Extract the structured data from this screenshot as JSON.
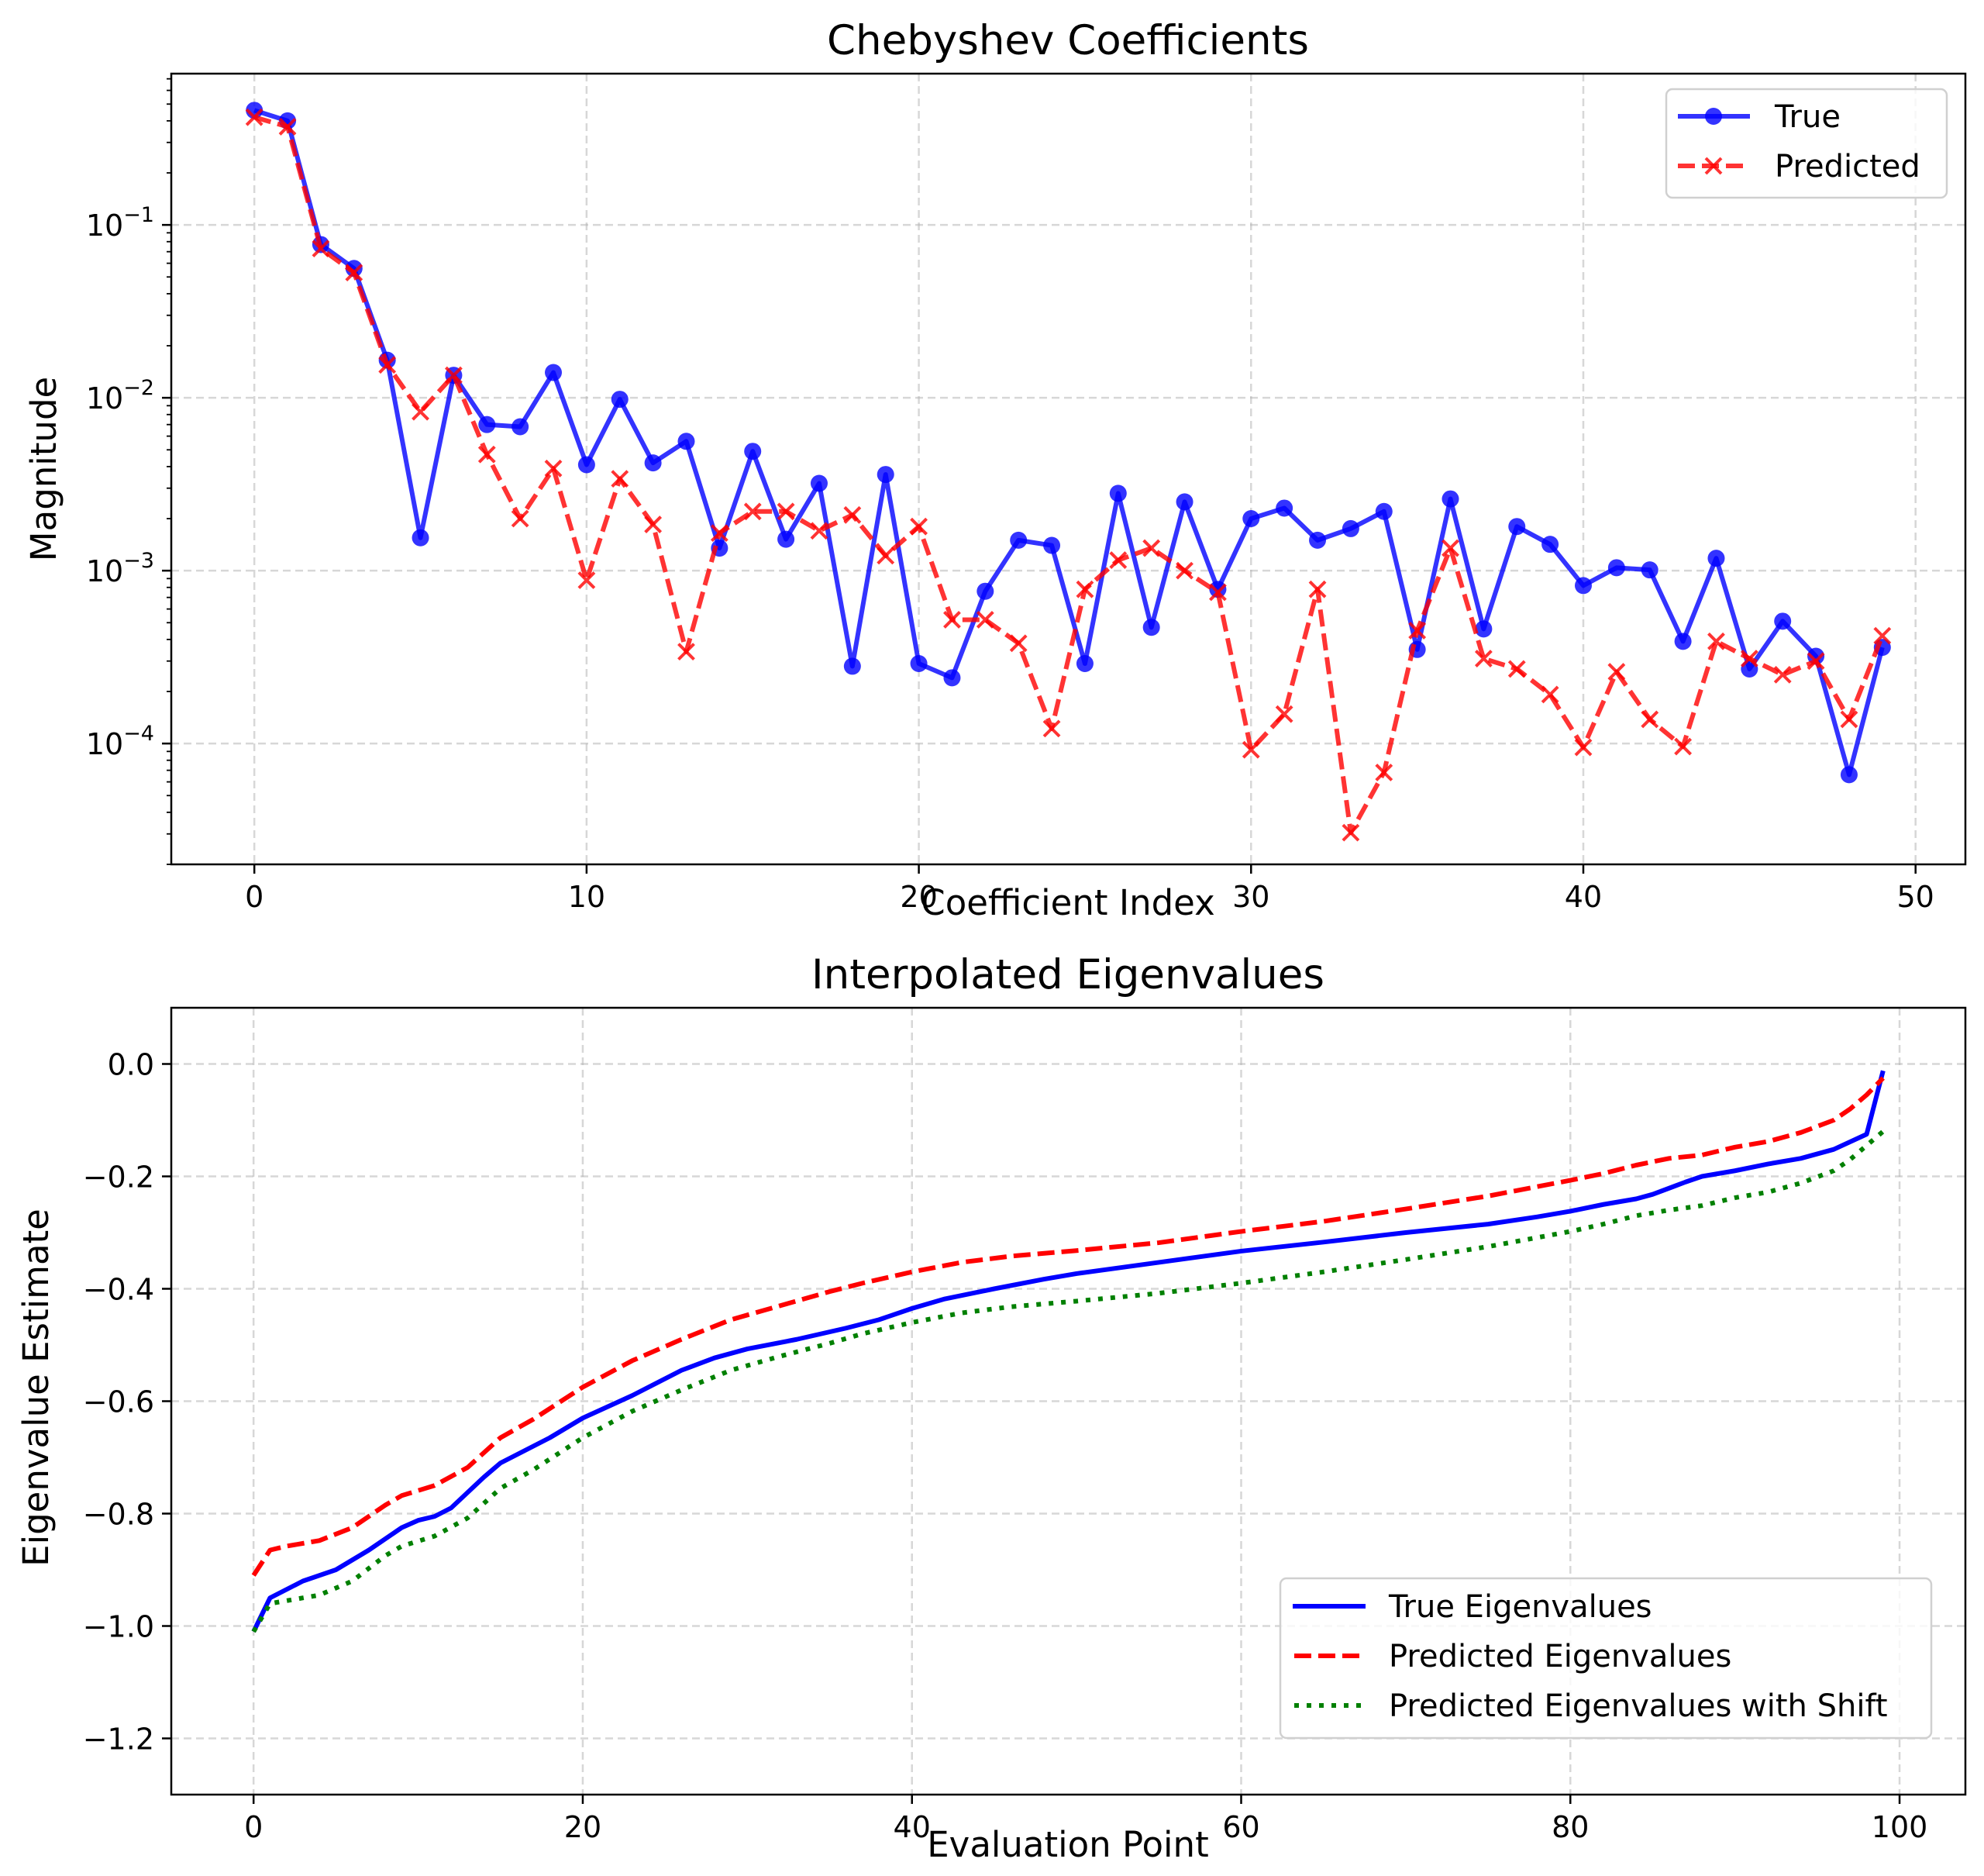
{
  "chart_data": [
    {
      "type": "line",
      "title": "Chebyshev Coefficients",
      "xlabel": "Coefficient Index",
      "ylabel": "Magnitude",
      "yscale": "log",
      "xlim": [
        -2.5,
        51.5
      ],
      "ylim": [
        2e-05,
        0.75
      ],
      "xticks": [
        0,
        10,
        20,
        30,
        40,
        50
      ],
      "xtick_labels": [
        "0",
        "10",
        "20",
        "30",
        "40",
        "50"
      ],
      "yticks": [
        0.1,
        0.01,
        0.001,
        0.0001
      ],
      "ytick_labels": [
        {
          "base": "10",
          "exp": "−1"
        },
        {
          "base": "10",
          "exp": "−2"
        },
        {
          "base": "10",
          "exp": "−3"
        },
        {
          "base": "10",
          "exp": "−4"
        }
      ],
      "grid": true,
      "legend_position": "top-right",
      "x": [
        0,
        1,
        2,
        3,
        4,
        5,
        6,
        7,
        8,
        9,
        10,
        11,
        12,
        13,
        14,
        15,
        16,
        17,
        18,
        19,
        20,
        21,
        22,
        23,
        24,
        25,
        26,
        27,
        28,
        29,
        30,
        31,
        32,
        33,
        34,
        35,
        36,
        37,
        38,
        39,
        40,
        41,
        42,
        43,
        44,
        45,
        46,
        47,
        48,
        49
      ],
      "series": [
        {
          "name": "True",
          "color": "#0000ff",
          "style": "solid",
          "marker": "circle",
          "values": [
            0.46,
            0.4,
            0.077,
            0.056,
            0.0165,
            0.00155,
            0.0135,
            0.007,
            0.0068,
            0.014,
            0.0041,
            0.0098,
            0.0042,
            0.0056,
            0.00135,
            0.0049,
            0.00152,
            0.0032,
            0.00028,
            0.0036,
            0.00029,
            0.00024,
            0.00076,
            0.0015,
            0.0014,
            0.00029,
            0.0028,
            0.00047,
            0.0025,
            0.00078,
            0.002,
            0.0023,
            0.0015,
            0.00175,
            0.0022,
            0.00035,
            0.0026,
            0.00046,
            0.0018,
            0.00142,
            0.00082,
            0.00104,
            0.00101,
            0.00039,
            0.00118,
            0.00027,
            0.00051,
            0.00032,
            6.6e-05,
            0.00036
          ]
        },
        {
          "name": "Predicted",
          "color": "#ff0000",
          "style": "dashed",
          "marker": "x",
          "values": [
            0.42,
            0.37,
            0.073,
            0.053,
            0.0155,
            0.0083,
            0.0135,
            0.0047,
            0.002,
            0.0039,
            0.00088,
            0.0034,
            0.00185,
            0.00034,
            0.00165,
            0.0022,
            0.0022,
            0.0017,
            0.0021,
            0.00122,
            0.0018,
            0.00052,
            0.00052,
            0.00038,
            0.000122,
            0.00078,
            0.00115,
            0.00135,
            0.001,
            0.00075,
            9.2e-05,
            0.000148,
            0.00078,
            3.05e-05,
            6.8e-05,
            0.00045,
            0.00135,
            0.00031,
            0.00027,
            0.000192,
            9.5e-05,
            0.00026,
            0.000138,
            9.6e-05,
            0.00039,
            0.00031,
            0.00025,
            0.0003,
            0.000138,
            0.00042
          ]
        }
      ]
    },
    {
      "type": "line",
      "title": "Interpolated Eigenvalues",
      "xlabel": "Evaluation Point",
      "ylabel": "Eigenvalue Estimate",
      "xlim": [
        -5,
        104
      ],
      "ylim": [
        -1.3,
        0.1
      ],
      "xticks": [
        0,
        20,
        40,
        60,
        80,
        100
      ],
      "xtick_labels": [
        "0",
        "20",
        "40",
        "60",
        "80",
        "100"
      ],
      "yticks": [
        0.0,
        -0.2,
        -0.4,
        -0.6,
        -0.8,
        -1.0,
        -1.2
      ],
      "ytick_labels": [
        "0.0",
        "−0.2",
        "−0.4",
        "−0.6",
        "−0.8",
        "−1.0",
        "−1.2"
      ],
      "grid": true,
      "legend_position": "bottom-right",
      "series": [
        {
          "name": "True Eigenvalues",
          "color": "#0000ff",
          "style": "solid",
          "points": [
            [
              0,
              -1.01
            ],
            [
              1,
              -0.95
            ],
            [
              2,
              -0.935
            ],
            [
              3,
              -0.92
            ],
            [
              5,
              -0.9
            ],
            [
              7,
              -0.865
            ],
            [
              9,
              -0.825
            ],
            [
              10,
              -0.812
            ],
            [
              11,
              -0.805
            ],
            [
              12,
              -0.79
            ],
            [
              14,
              -0.735
            ],
            [
              15,
              -0.71
            ],
            [
              16,
              -0.695
            ],
            [
              18,
              -0.665
            ],
            [
              20,
              -0.63
            ],
            [
              23,
              -0.59
            ],
            [
              26,
              -0.545
            ],
            [
              28,
              -0.523
            ],
            [
              30,
              -0.507
            ],
            [
              33,
              -0.49
            ],
            [
              36,
              -0.47
            ],
            [
              38,
              -0.455
            ],
            [
              40,
              -0.435
            ],
            [
              42,
              -0.418
            ],
            [
              45,
              -0.4
            ],
            [
              48,
              -0.383
            ],
            [
              50,
              -0.373
            ],
            [
              55,
              -0.353
            ],
            [
              60,
              -0.333
            ],
            [
              65,
              -0.317
            ],
            [
              70,
              -0.3
            ],
            [
              75,
              -0.285
            ],
            [
              78,
              -0.272
            ],
            [
              80,
              -0.262
            ],
            [
              82,
              -0.25
            ],
            [
              84,
              -0.24
            ],
            [
              85,
              -0.232
            ],
            [
              87,
              -0.21
            ],
            [
              88,
              -0.2
            ],
            [
              90,
              -0.19
            ],
            [
              92,
              -0.178
            ],
            [
              94,
              -0.168
            ],
            [
              96,
              -0.152
            ],
            [
              98,
              -0.125
            ],
            [
              99,
              -0.012
            ]
          ]
        },
        {
          "name": "Predicted Eigenvalues",
          "color": "#ff0000",
          "style": "dashed",
          "points": [
            [
              0,
              -0.91
            ],
            [
              1,
              -0.865
            ],
            [
              2,
              -0.858
            ],
            [
              4,
              -0.848
            ],
            [
              6,
              -0.825
            ],
            [
              8,
              -0.785
            ],
            [
              9,
              -0.768
            ],
            [
              11,
              -0.75
            ],
            [
              13,
              -0.718
            ],
            [
              15,
              -0.665
            ],
            [
              17,
              -0.632
            ],
            [
              20,
              -0.575
            ],
            [
              23,
              -0.528
            ],
            [
              26,
              -0.49
            ],
            [
              29,
              -0.455
            ],
            [
              32,
              -0.43
            ],
            [
              35,
              -0.405
            ],
            [
              37,
              -0.39
            ],
            [
              40,
              -0.37
            ],
            [
              43,
              -0.353
            ],
            [
              46,
              -0.342
            ],
            [
              50,
              -0.332
            ],
            [
              55,
              -0.318
            ],
            [
              60,
              -0.298
            ],
            [
              65,
              -0.28
            ],
            [
              70,
              -0.258
            ],
            [
              75,
              -0.235
            ],
            [
              80,
              -0.207
            ],
            [
              82,
              -0.195
            ],
            [
              84,
              -0.18
            ],
            [
              86,
              -0.168
            ],
            [
              88,
              -0.162
            ],
            [
              90,
              -0.148
            ],
            [
              92,
              -0.138
            ],
            [
              94,
              -0.122
            ],
            [
              96,
              -0.1
            ],
            [
              97,
              -0.08
            ],
            [
              98,
              -0.055
            ],
            [
              99,
              -0.025
            ]
          ]
        },
        {
          "name": "Predicted Eigenvalues with Shift",
          "color": "#008000",
          "style": "dotted",
          "points": [
            [
              0,
              -1.01
            ],
            [
              1,
              -0.96
            ],
            [
              2,
              -0.955
            ],
            [
              4,
              -0.945
            ],
            [
              6,
              -0.92
            ],
            [
              8,
              -0.875
            ],
            [
              9,
              -0.858
            ],
            [
              11,
              -0.84
            ],
            [
              13,
              -0.808
            ],
            [
              15,
              -0.755
            ],
            [
              17,
              -0.722
            ],
            [
              20,
              -0.665
            ],
            [
              23,
              -0.618
            ],
            [
              26,
              -0.58
            ],
            [
              29,
              -0.545
            ],
            [
              32,
              -0.52
            ],
            [
              35,
              -0.497
            ],
            [
              37,
              -0.48
            ],
            [
              40,
              -0.46
            ],
            [
              43,
              -0.443
            ],
            [
              46,
              -0.432
            ],
            [
              50,
              -0.422
            ],
            [
              55,
              -0.408
            ],
            [
              60,
              -0.39
            ],
            [
              65,
              -0.37
            ],
            [
              70,
              -0.348
            ],
            [
              75,
              -0.325
            ],
            [
              80,
              -0.298
            ],
            [
              82,
              -0.285
            ],
            [
              84,
              -0.27
            ],
            [
              86,
              -0.26
            ],
            [
              88,
              -0.252
            ],
            [
              90,
              -0.238
            ],
            [
              92,
              -0.228
            ],
            [
              94,
              -0.212
            ],
            [
              96,
              -0.19
            ],
            [
              97,
              -0.17
            ],
            [
              98,
              -0.145
            ],
            [
              99,
              -0.12
            ]
          ]
        }
      ]
    }
  ]
}
